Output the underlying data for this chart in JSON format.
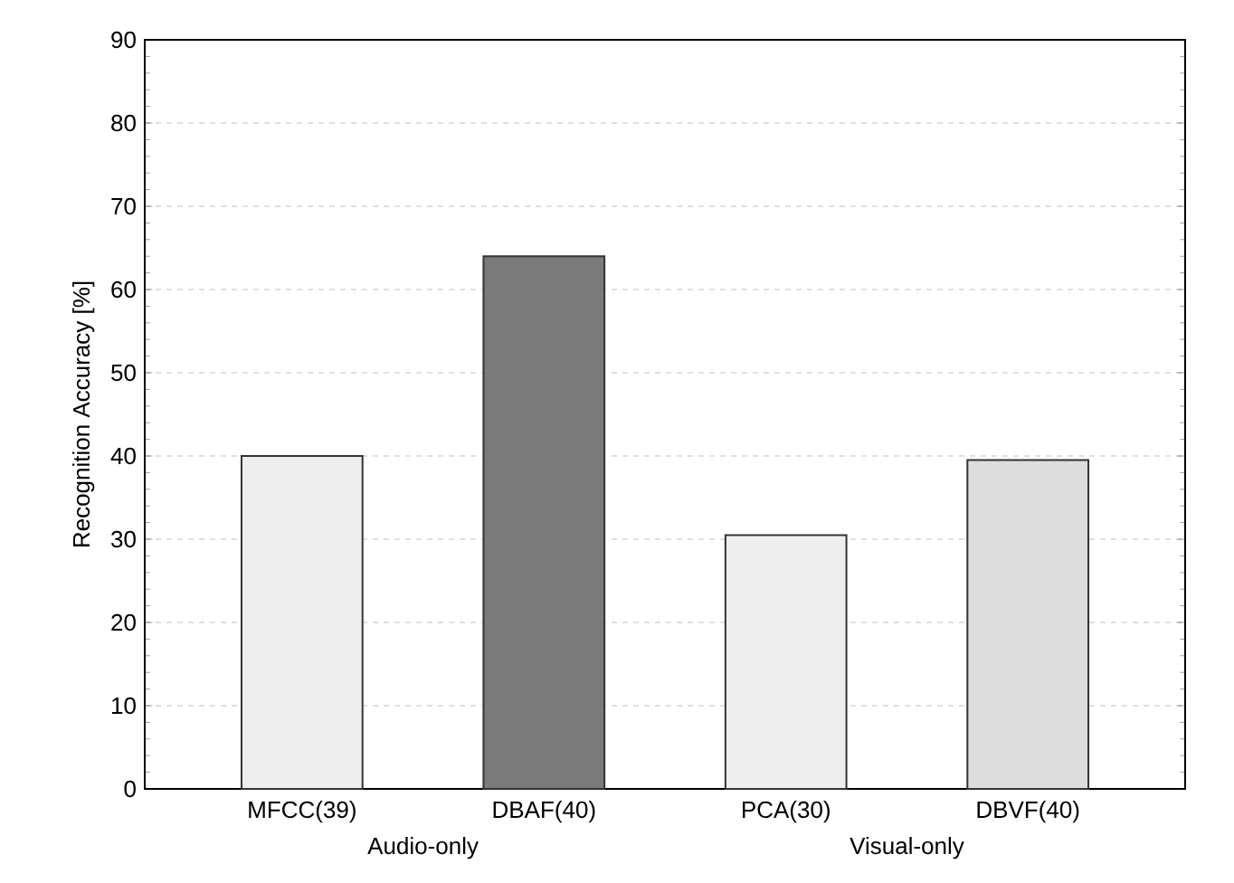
{
  "chart_data": {
    "type": "bar",
    "ylabel": "Recognition Accuracy [%]",
    "categories": [
      "MFCC(39)",
      "DBAF(40)",
      "PCA(30)",
      "DBVF(40)"
    ],
    "values": [
      40,
      64,
      30.5,
      39.5
    ],
    "colors": [
      "#eeeeee",
      "#7a7a7a",
      "#eeeeee",
      "#dddddd"
    ],
    "ylim": [
      0,
      90
    ],
    "yticks": [
      0,
      10,
      20,
      30,
      40,
      50,
      60,
      70,
      80,
      90
    ],
    "grid": "y",
    "annotations": [
      "Audio-only",
      "Visual-only"
    ]
  }
}
